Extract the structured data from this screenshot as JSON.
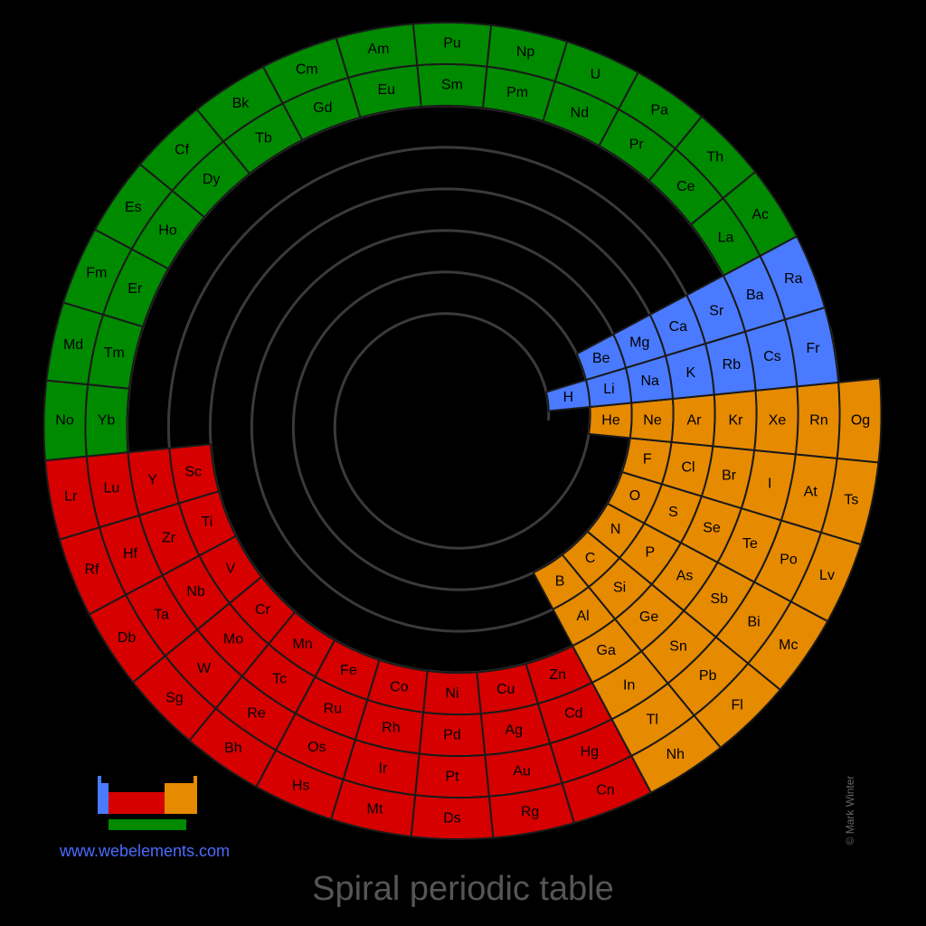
{
  "title": "Spiral periodic table",
  "website": "www.webelements.com",
  "credit": "© Mark Winter",
  "colors": {
    "s": "#4a7aff",
    "f": "#008a00",
    "d": "#d60000",
    "p": "#e68a00"
  },
  "periods": [
    [
      "H",
      "He"
    ],
    [
      "Li",
      "Be",
      "B",
      "C",
      "N",
      "O",
      "F",
      "Ne"
    ],
    [
      "Na",
      "Mg",
      "Al",
      "Si",
      "P",
      "S",
      "Cl",
      "Ar"
    ],
    [
      "K",
      "Ca",
      "Sc",
      "Ti",
      "V",
      "Cr",
      "Mn",
      "Fe",
      "Co",
      "Ni",
      "Cu",
      "Zn",
      "Ga",
      "Ge",
      "As",
      "Se",
      "Br",
      "Kr"
    ],
    [
      "Rb",
      "Sr",
      "Y",
      "Zr",
      "Nb",
      "Mo",
      "Tc",
      "Ru",
      "Rh",
      "Pd",
      "Ag",
      "Cd",
      "In",
      "Sn",
      "Sb",
      "Te",
      "I",
      "Xe"
    ],
    [
      "Cs",
      "Ba",
      "La",
      "Ce",
      "Pr",
      "Nd",
      "Pm",
      "Sm",
      "Eu",
      "Gd",
      "Tb",
      "Dy",
      "Ho",
      "Er",
      "Tm",
      "Yb",
      "Lu",
      "Hf",
      "Ta",
      "W",
      "Re",
      "Os",
      "Ir",
      "Pt",
      "Au",
      "Hg",
      "Tl",
      "Pb",
      "Bi",
      "Po",
      "At",
      "Rn"
    ],
    [
      "Fr",
      "Ra",
      "Ac",
      "Th",
      "Pa",
      "U",
      "Np",
      "Pu",
      "Am",
      "Cm",
      "Bk",
      "Cf",
      "Es",
      "Fm",
      "Md",
      "No",
      "Lr",
      "Rf",
      "Db",
      "Sg",
      "Bh",
      "Hs",
      "Mt",
      "Ds",
      "Rg",
      "Cn",
      "Nh",
      "Fl",
      "Mc",
      "Lv",
      "Ts",
      "Og"
    ]
  ]
}
